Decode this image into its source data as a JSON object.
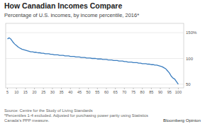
{
  "chart_data": {
    "type": "line",
    "title": "How Canadian Incomes Compare",
    "subtitle": "Percentage of U.S. incomes, by income percentile, 2016*",
    "source": "Source: Centre for the Study of Living Standards\n*Percentiles 1-4 excluded. Adjusted for purchasing power parity using Statistics\nCanada’s PPP measure.",
    "branding": "Bloomberg Opinion",
    "x": [
      5,
      6,
      7,
      8,
      9,
      10,
      11,
      12,
      13,
      14,
      15,
      16,
      17,
      18,
      19,
      20,
      21,
      22,
      23,
      24,
      25,
      26,
      27,
      28,
      29,
      30,
      31,
      32,
      33,
      34,
      35,
      36,
      37,
      38,
      39,
      40,
      41,
      42,
      43,
      44,
      45,
      46,
      47,
      48,
      49,
      50,
      51,
      52,
      53,
      54,
      55,
      56,
      57,
      58,
      59,
      60,
      61,
      62,
      63,
      64,
      65,
      66,
      67,
      68,
      69,
      70,
      71,
      72,
      73,
      74,
      75,
      76,
      77,
      78,
      79,
      80,
      81,
      82,
      83,
      84,
      85,
      86,
      87,
      88,
      89,
      90,
      91,
      92,
      93,
      94,
      95,
      96,
      97,
      98,
      99,
      100
    ],
    "values": [
      138,
      140,
      137,
      132,
      128,
      125,
      122,
      120,
      118,
      117,
      116,
      115,
      114,
      113,
      113,
      112,
      112,
      111,
      111,
      110,
      110,
      109,
      109,
      109,
      108,
      108,
      107,
      107,
      107,
      106,
      106,
      106,
      105,
      105,
      105,
      104,
      104,
      104,
      103,
      103,
      103,
      102,
      102,
      102,
      101,
      101,
      101,
      100,
      100,
      100,
      99,
      99,
      99,
      98,
      98,
      98,
      97,
      97,
      97,
      96,
      96,
      96,
      95,
      95,
      95,
      94,
      94,
      93,
      93,
      93,
      92,
      92,
      92,
      91,
      91,
      90,
      90,
      90,
      89,
      89,
      88,
      88,
      87,
      87,
      86,
      85,
      84,
      82,
      80,
      76,
      72,
      66,
      62,
      60,
      55,
      50
    ],
    "color": "#3a7dbf",
    "xlim": [
      4,
      103
    ],
    "ylim": [
      43,
      168
    ],
    "xticks": [
      5,
      10,
      15,
      20,
      25,
      30,
      35,
      40,
      45,
      50,
      55,
      60,
      65,
      70,
      75,
      80,
      85,
      90,
      95,
      100
    ],
    "yticks": [
      50,
      100,
      {
        "value": 150,
        "label": "150%"
      }
    ],
    "grid": true
  }
}
